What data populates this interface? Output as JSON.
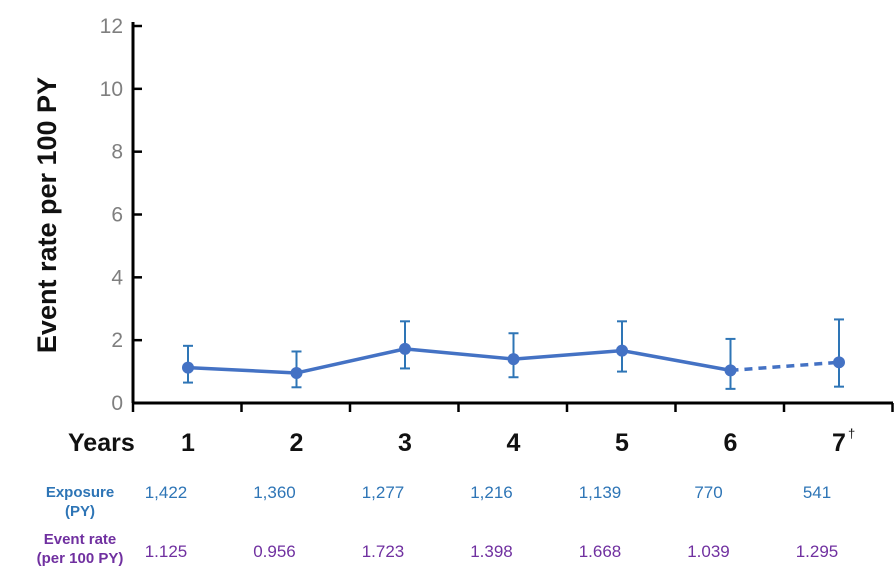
{
  "chart_data": {
    "type": "line",
    "ylabel": "Event rate per 100 PY",
    "xlabel": "Years",
    "ylim": [
      0,
      12
    ],
    "yticks": [
      0,
      2,
      4,
      6,
      8,
      10,
      12
    ],
    "grid": false,
    "categories": [
      "1",
      "2",
      "3",
      "4",
      "5",
      "6",
      "7"
    ],
    "category_superscripts": [
      "",
      "",
      "",
      "",
      "",
      "",
      "†"
    ],
    "series": [
      {
        "values": [
          1.125,
          0.956,
          1.723,
          1.398,
          1.668,
          1.039,
          1.295
        ],
        "error_low": [
          0.65,
          0.5,
          1.1,
          0.82,
          1.0,
          0.45,
          0.52
        ],
        "error_high": [
          1.82,
          1.64,
          2.6,
          2.22,
          2.6,
          2.04,
          2.66
        ],
        "dashed_from_index": 5,
        "color": "#4472c4"
      }
    ],
    "table_rows": [
      {
        "label_lines": [
          "Exposure",
          "(PY)"
        ],
        "values": [
          "1,422",
          "1,360",
          "1,277",
          "1,216",
          "1,139",
          "770",
          "541"
        ],
        "label_color": "#2e75b6",
        "value_color": "#2e75b6"
      },
      {
        "label_lines": [
          "Event rate",
          "(per 100 PY)"
        ],
        "values": [
          "1.125",
          "0.956",
          "1.723",
          "1.398",
          "1.668",
          "1.039",
          "1.295"
        ],
        "label_color": "#7030a0",
        "value_color": "#7030a0"
      }
    ],
    "colors": {
      "line": "#4472c4",
      "errorbar": "#2e75b6",
      "axis": "#000000"
    }
  }
}
